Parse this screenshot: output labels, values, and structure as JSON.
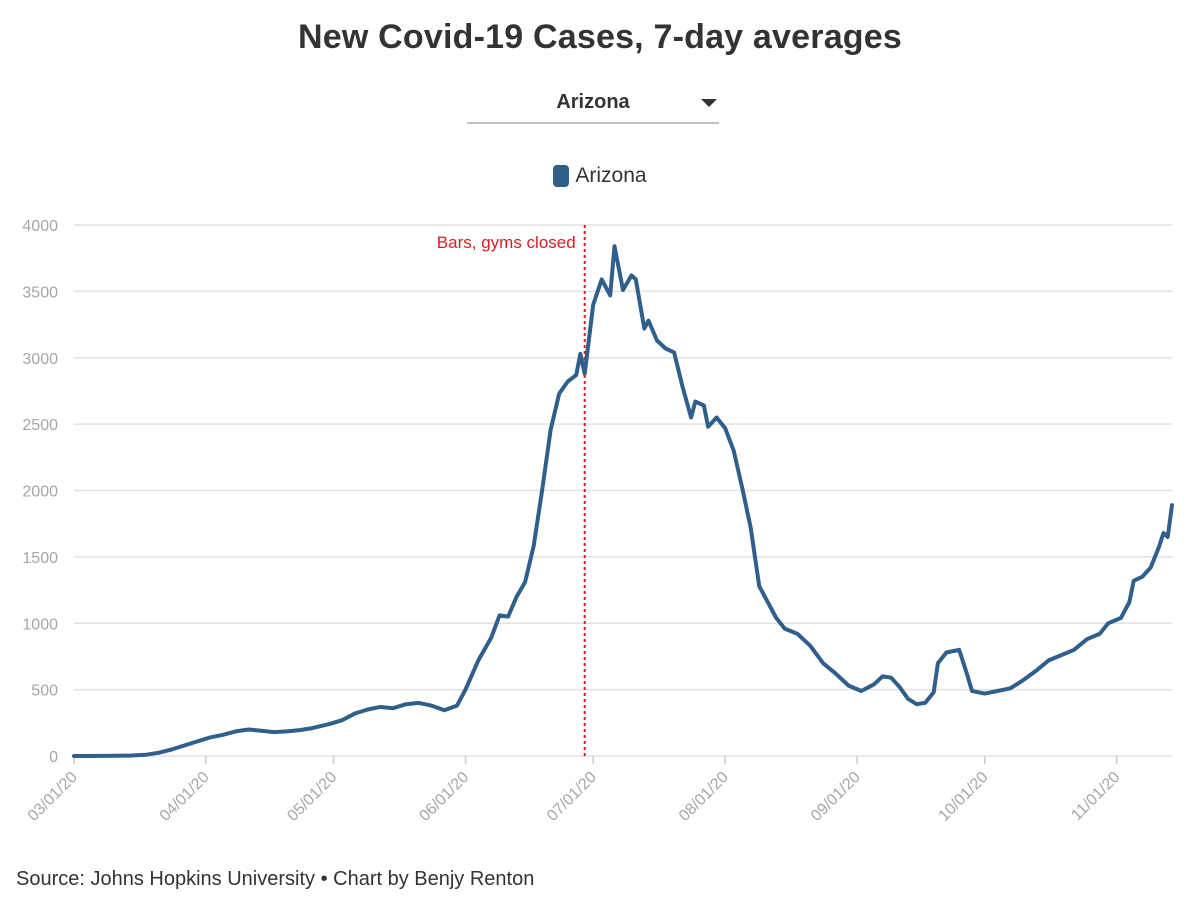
{
  "title": "New Covid-19 Cases, 7-day averages",
  "selector": {
    "selected": "Arizona"
  },
  "legend": {
    "label": "Arizona"
  },
  "colors": {
    "line": "#2f5f8a",
    "annotation": "#d62020",
    "grid": "#e2e2e2",
    "axis_text": "#a6a6a6"
  },
  "source": "Source: Johns Hopkins University • Chart by Benjy Renton",
  "chart_data": {
    "type": "line",
    "title": "New Covid-19 Cases, 7-day averages",
    "xlabel": "",
    "ylabel": "",
    "xlim": [
      "2020-03-01",
      "2020-11-14"
    ],
    "ylim": [
      0,
      4000
    ],
    "yticks": [
      0,
      500,
      1000,
      1500,
      2000,
      2500,
      3000,
      3500,
      4000
    ],
    "xticks": [
      "03/01/20",
      "04/01/20",
      "05/01/20",
      "06/01/20",
      "07/01/20",
      "08/01/20",
      "09/01/20",
      "10/01/20",
      "11/01/20"
    ],
    "xtick_dates": [
      "2020-03-01",
      "2020-04-01",
      "2020-05-01",
      "2020-06-01",
      "2020-07-01",
      "2020-08-01",
      "2020-09-01",
      "2020-10-01",
      "2020-11-01"
    ],
    "grid": true,
    "legend_position": "top-center",
    "annotations": [
      {
        "date": "2020-06-29",
        "text": "Bars, gyms closed"
      }
    ],
    "series": [
      {
        "name": "Arizona",
        "points": [
          [
            "2020-03-01",
            0
          ],
          [
            "2020-03-08",
            1
          ],
          [
            "2020-03-14",
            3
          ],
          [
            "2020-03-18",
            10
          ],
          [
            "2020-03-21",
            25
          ],
          [
            "2020-03-24",
            50
          ],
          [
            "2020-03-27",
            80
          ],
          [
            "2020-03-30",
            110
          ],
          [
            "2020-04-02",
            140
          ],
          [
            "2020-04-05",
            160
          ],
          [
            "2020-04-08",
            185
          ],
          [
            "2020-04-11",
            200
          ],
          [
            "2020-04-14",
            190
          ],
          [
            "2020-04-17",
            180
          ],
          [
            "2020-04-20",
            185
          ],
          [
            "2020-04-23",
            195
          ],
          [
            "2020-04-26",
            210
          ],
          [
            "2020-04-30",
            240
          ],
          [
            "2020-05-03",
            270
          ],
          [
            "2020-05-06",
            320
          ],
          [
            "2020-05-09",
            350
          ],
          [
            "2020-05-12",
            370
          ],
          [
            "2020-05-15",
            360
          ],
          [
            "2020-05-18",
            390
          ],
          [
            "2020-05-21",
            400
          ],
          [
            "2020-05-24",
            380
          ],
          [
            "2020-05-27",
            345
          ],
          [
            "2020-05-30",
            380
          ],
          [
            "2020-06-01",
            500
          ],
          [
            "2020-06-04",
            720
          ],
          [
            "2020-06-07",
            890
          ],
          [
            "2020-06-09",
            1060
          ],
          [
            "2020-06-11",
            1050
          ],
          [
            "2020-06-13",
            1200
          ],
          [
            "2020-06-15",
            1310
          ],
          [
            "2020-06-17",
            1580
          ],
          [
            "2020-06-19",
            2000
          ],
          [
            "2020-06-21",
            2460
          ],
          [
            "2020-06-23",
            2730
          ],
          [
            "2020-06-25",
            2820
          ],
          [
            "2020-06-27",
            2870
          ],
          [
            "2020-06-28",
            3030
          ],
          [
            "2020-06-29",
            2880
          ],
          [
            "2020-07-01",
            3400
          ],
          [
            "2020-07-03",
            3590
          ],
          [
            "2020-07-05",
            3470
          ],
          [
            "2020-07-06",
            3840
          ],
          [
            "2020-07-08",
            3510
          ],
          [
            "2020-07-10",
            3620
          ],
          [
            "2020-07-11",
            3590
          ],
          [
            "2020-07-13",
            3220
          ],
          [
            "2020-07-14",
            3280
          ],
          [
            "2020-07-16",
            3130
          ],
          [
            "2020-07-18",
            3070
          ],
          [
            "2020-07-20",
            3040
          ],
          [
            "2020-07-22",
            2780
          ],
          [
            "2020-07-24",
            2550
          ],
          [
            "2020-07-25",
            2670
          ],
          [
            "2020-07-27",
            2640
          ],
          [
            "2020-07-28",
            2480
          ],
          [
            "2020-07-30",
            2550
          ],
          [
            "2020-08-01",
            2470
          ],
          [
            "2020-08-03",
            2300
          ],
          [
            "2020-08-05",
            2020
          ],
          [
            "2020-08-07",
            1720
          ],
          [
            "2020-08-09",
            1280
          ],
          [
            "2020-08-11",
            1160
          ],
          [
            "2020-08-13",
            1040
          ],
          [
            "2020-08-15",
            960
          ],
          [
            "2020-08-18",
            920
          ],
          [
            "2020-08-21",
            830
          ],
          [
            "2020-08-24",
            700
          ],
          [
            "2020-08-27",
            620
          ],
          [
            "2020-08-30",
            530
          ],
          [
            "2020-09-02",
            490
          ],
          [
            "2020-09-05",
            540
          ],
          [
            "2020-09-07",
            600
          ],
          [
            "2020-09-09",
            590
          ],
          [
            "2020-09-11",
            520
          ],
          [
            "2020-09-13",
            430
          ],
          [
            "2020-09-15",
            390
          ],
          [
            "2020-09-17",
            400
          ],
          [
            "2020-09-19",
            480
          ],
          [
            "2020-09-20",
            700
          ],
          [
            "2020-09-22",
            780
          ],
          [
            "2020-09-25",
            800
          ],
          [
            "2020-09-27",
            600
          ],
          [
            "2020-09-28",
            490
          ],
          [
            "2020-10-01",
            470
          ],
          [
            "2020-10-04",
            490
          ],
          [
            "2020-10-07",
            510
          ],
          [
            "2020-10-10",
            570
          ],
          [
            "2020-10-13",
            640
          ],
          [
            "2020-10-16",
            720
          ],
          [
            "2020-10-19",
            760
          ],
          [
            "2020-10-22",
            800
          ],
          [
            "2020-10-25",
            880
          ],
          [
            "2020-10-28",
            920
          ],
          [
            "2020-10-30",
            1000
          ],
          [
            "2020-11-02",
            1040
          ],
          [
            "2020-11-04",
            1160
          ],
          [
            "2020-11-05",
            1320
          ],
          [
            "2020-11-07",
            1350
          ],
          [
            "2020-11-09",
            1420
          ],
          [
            "2020-11-11",
            1580
          ],
          [
            "2020-11-12",
            1680
          ],
          [
            "2020-11-13",
            1650
          ],
          [
            "2020-11-14",
            1890
          ]
        ]
      }
    ]
  }
}
